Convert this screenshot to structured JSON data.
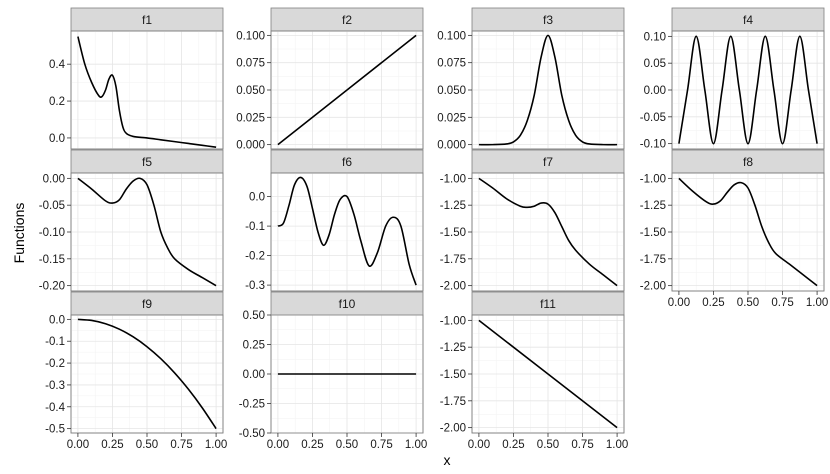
{
  "chart_data": {
    "type": "line",
    "xlabel": "x",
    "ylabel": "Functions",
    "x_ticks": [
      0.0,
      0.25,
      0.5,
      0.75,
      1.0
    ],
    "x_tick_labels": [
      "0.00",
      "0.25",
      "0.50",
      "0.75",
      "1.00"
    ],
    "xlim": [
      0,
      1
    ],
    "grid": true,
    "line_color": "#000000",
    "strip_color": "#d9d9d9",
    "panels": [
      {
        "name": "f1",
        "ylim": [
          -0.06,
          0.58
        ],
        "y_ticks": [
          0.0,
          0.2,
          0.4
        ],
        "y_tick_labels": [
          "0.0",
          "0.2",
          "0.4"
        ],
        "x": [
          0,
          0.05,
          0.1,
          0.15,
          0.175,
          0.2,
          0.225,
          0.25,
          0.275,
          0.3,
          0.325,
          0.35,
          0.4,
          0.5,
          0.6,
          0.7,
          0.8,
          0.9,
          1.0
        ],
        "y": [
          0.55,
          0.4,
          0.3,
          0.23,
          0.225,
          0.26,
          0.32,
          0.34,
          0.28,
          0.15,
          0.06,
          0.025,
          0.008,
          0.0,
          -0.01,
          -0.02,
          -0.03,
          -0.04,
          -0.05
        ]
      },
      {
        "name": "f2",
        "ylim": [
          -0.004,
          0.104
        ],
        "y_ticks": [
          0.0,
          0.025,
          0.05,
          0.075,
          0.1
        ],
        "y_tick_labels": [
          "0.000",
          "0.025",
          "0.050",
          "0.075",
          "0.100"
        ],
        "x": [
          0,
          1
        ],
        "y": [
          0.0,
          0.1
        ]
      },
      {
        "name": "f3",
        "ylim": [
          -0.004,
          0.104
        ],
        "y_ticks": [
          0.0,
          0.025,
          0.05,
          0.075,
          0.1
        ],
        "y_tick_labels": [
          "0.000",
          "0.025",
          "0.050",
          "0.075",
          "0.100"
        ],
        "x": [
          0,
          0.1,
          0.2,
          0.25,
          0.3,
          0.35,
          0.4,
          0.45,
          0.5,
          0.55,
          0.6,
          0.65,
          0.7,
          0.75,
          0.8,
          0.9,
          1.0
        ],
        "y": [
          0.0,
          0.0,
          0.0006,
          0.0025,
          0.0085,
          0.022,
          0.045,
          0.08,
          0.1,
          0.08,
          0.045,
          0.022,
          0.0085,
          0.0025,
          0.0006,
          0.0,
          0.0
        ]
      },
      {
        "name": "f4",
        "ylim": [
          -0.11,
          0.11
        ],
        "y_ticks": [
          -0.1,
          -0.05,
          0.0,
          0.05,
          0.1
        ],
        "y_tick_labels": [
          "-0.10",
          "-0.05",
          "0.00",
          "0.05",
          "0.10"
        ],
        "x": [
          0,
          0.0625,
          0.125,
          0.1875,
          0.25,
          0.3125,
          0.375,
          0.4375,
          0.5,
          0.5625,
          0.625,
          0.6875,
          0.75,
          0.8125,
          0.875,
          0.9375,
          1.0
        ],
        "y": [
          -0.1,
          0.0,
          0.1,
          0.0,
          -0.1,
          0.0,
          0.1,
          0.0,
          -0.1,
          0.0,
          0.1,
          0.0,
          -0.1,
          0.0,
          0.1,
          0.0,
          -0.1
        ]
      },
      {
        "name": "f5",
        "ylim": [
          -0.21,
          0.01
        ],
        "y_ticks": [
          -0.2,
          -0.15,
          -0.1,
          -0.05,
          0.0
        ],
        "y_tick_labels": [
          "-0.20",
          "-0.15",
          "-0.10",
          "-0.05",
          "0.00"
        ],
        "x": [
          0,
          0.1,
          0.2,
          0.25,
          0.3,
          0.35,
          0.4,
          0.45,
          0.5,
          0.55,
          0.6,
          0.65,
          0.7,
          0.8,
          0.9,
          1.0
        ],
        "y": [
          0.0,
          -0.02,
          -0.042,
          -0.046,
          -0.04,
          -0.02,
          -0.005,
          0.0,
          -0.012,
          -0.05,
          -0.1,
          -0.13,
          -0.15,
          -0.17,
          -0.185,
          -0.2
        ]
      },
      {
        "name": "f6",
        "ylim": [
          -0.32,
          0.08
        ],
        "y_ticks": [
          -0.3,
          -0.2,
          -0.1,
          0.0
        ],
        "y_tick_labels": [
          "-0.3",
          "-0.2",
          "-0.1",
          "0.0"
        ],
        "x": [
          0,
          0.04,
          0.08,
          0.12,
          0.165,
          0.21,
          0.25,
          0.29,
          0.33,
          0.37,
          0.41,
          0.45,
          0.5,
          0.55,
          0.6,
          0.66,
          0.72,
          0.78,
          0.835,
          0.89,
          0.95,
          1.0
        ],
        "y": [
          -0.1,
          -0.09,
          -0.03,
          0.04,
          0.065,
          0.035,
          -0.04,
          -0.12,
          -0.165,
          -0.13,
          -0.06,
          -0.01,
          0.0,
          -0.06,
          -0.15,
          -0.235,
          -0.19,
          -0.1,
          -0.07,
          -0.1,
          -0.23,
          -0.3
        ]
      },
      {
        "name": "f7",
        "ylim": [
          -2.05,
          -0.95
        ],
        "y_ticks": [
          -2.0,
          -1.75,
          -1.5,
          -1.25,
          -1.0
        ],
        "y_tick_labels": [
          "-2.00",
          "-1.75",
          "-1.50",
          "-1.25",
          "-1.00"
        ],
        "x": [
          0,
          0.1,
          0.2,
          0.3,
          0.35,
          0.4,
          0.45,
          0.5,
          0.55,
          0.6,
          0.65,
          0.7,
          0.8,
          0.9,
          1.0
        ],
        "y": [
          -1.0,
          -1.09,
          -1.19,
          -1.26,
          -1.27,
          -1.26,
          -1.23,
          -1.24,
          -1.32,
          -1.45,
          -1.58,
          -1.67,
          -1.8,
          -1.9,
          -2.0
        ]
      },
      {
        "name": "f8",
        "ylim": [
          -2.05,
          -0.95
        ],
        "y_ticks": [
          -2.0,
          -1.75,
          -1.5,
          -1.25,
          -1.0
        ],
        "y_tick_labels": [
          "-2.00",
          "-1.75",
          "-1.50",
          "-1.25",
          "-1.00"
        ],
        "x": [
          0,
          0.1,
          0.2,
          0.25,
          0.3,
          0.35,
          0.4,
          0.45,
          0.5,
          0.55,
          0.6,
          0.65,
          0.7,
          0.8,
          0.9,
          1.0
        ],
        "y": [
          -1.0,
          -1.12,
          -1.22,
          -1.24,
          -1.21,
          -1.13,
          -1.06,
          -1.04,
          -1.09,
          -1.25,
          -1.45,
          -1.6,
          -1.7,
          -1.8,
          -1.9,
          -2.0
        ]
      },
      {
        "name": "f9",
        "ylim": [
          -0.52,
          0.02
        ],
        "y_ticks": [
          -0.5,
          -0.4,
          -0.3,
          -0.2,
          -0.1,
          0.0
        ],
        "y_tick_labels": [
          "-0.5",
          "-0.4",
          "-0.3",
          "-0.2",
          "-0.1",
          "0.0"
        ],
        "x": [
          0,
          0.1,
          0.2,
          0.3,
          0.4,
          0.5,
          0.6,
          0.7,
          0.8,
          0.9,
          1.0
        ],
        "y": [
          0.0,
          -0.005,
          -0.02,
          -0.045,
          -0.08,
          -0.125,
          -0.18,
          -0.245,
          -0.32,
          -0.405,
          -0.5
        ]
      },
      {
        "name": "f10",
        "ylim": [
          -0.5,
          0.5
        ],
        "y_ticks": [
          -0.5,
          -0.25,
          0.0,
          0.25,
          0.5
        ],
        "y_tick_labels": [
          "-0.50",
          "-0.25",
          "0.00",
          "0.25",
          "0.50"
        ],
        "x": [
          0,
          1
        ],
        "y": [
          0.0,
          0.0
        ]
      },
      {
        "name": "f11",
        "ylim": [
          -2.05,
          -0.95
        ],
        "y_ticks": [
          -2.0,
          -1.75,
          -1.5,
          -1.25,
          -1.0
        ],
        "y_tick_labels": [
          "-2.00",
          "-1.75",
          "-1.50",
          "-1.25",
          "-1.00"
        ],
        "x": [
          0,
          1
        ],
        "y": [
          -1.0,
          -2.0
        ]
      }
    ]
  }
}
